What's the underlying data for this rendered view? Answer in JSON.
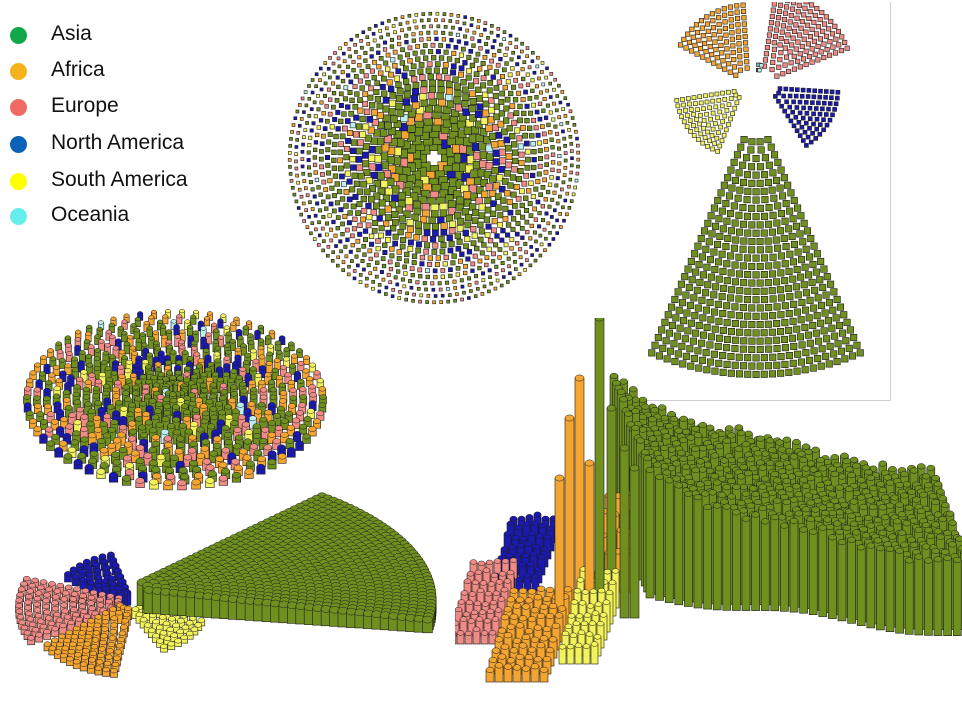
{
  "legend": {
    "items": [
      {
        "label": "Asia",
        "color": "#12a84a"
      },
      {
        "label": "Africa",
        "color": "#f6b21c"
      },
      {
        "label": "Europe",
        "color": "#f26b62"
      },
      {
        "label": "North America",
        "color": "#0b62b6"
      },
      {
        "label": "South America",
        "color": "#ffff00"
      },
      {
        "label": "Oceania",
        "color": "#66eeee"
      }
    ]
  },
  "mark_colors": {
    "Asia": "#6f8f1f",
    "Africa": "#f4a530",
    "Europe": "#f08a84",
    "North America": "#1a1ab0",
    "South America": "#f2f25a",
    "Oceania": "#bdeef2"
  },
  "chart_data": [
    {
      "type": "scatter",
      "view": "disc top view",
      "layout": "concentric rings of square markers"
    },
    {
      "type": "scatter",
      "view": "radial fan per continent",
      "layout": "Asia fan at bottom, smaller continent fans above"
    },
    {
      "type": "bar",
      "view": "disc 3D perspective",
      "layout": "concentric rings of bars"
    },
    {
      "type": "bar",
      "view": "fan 3D perspective",
      "layout": "continent fans with bars"
    },
    {
      "type": "bar",
      "view": "fan 3D perspective with height",
      "layout": "tall bars near center, Asia spread to the right"
    }
  ]
}
